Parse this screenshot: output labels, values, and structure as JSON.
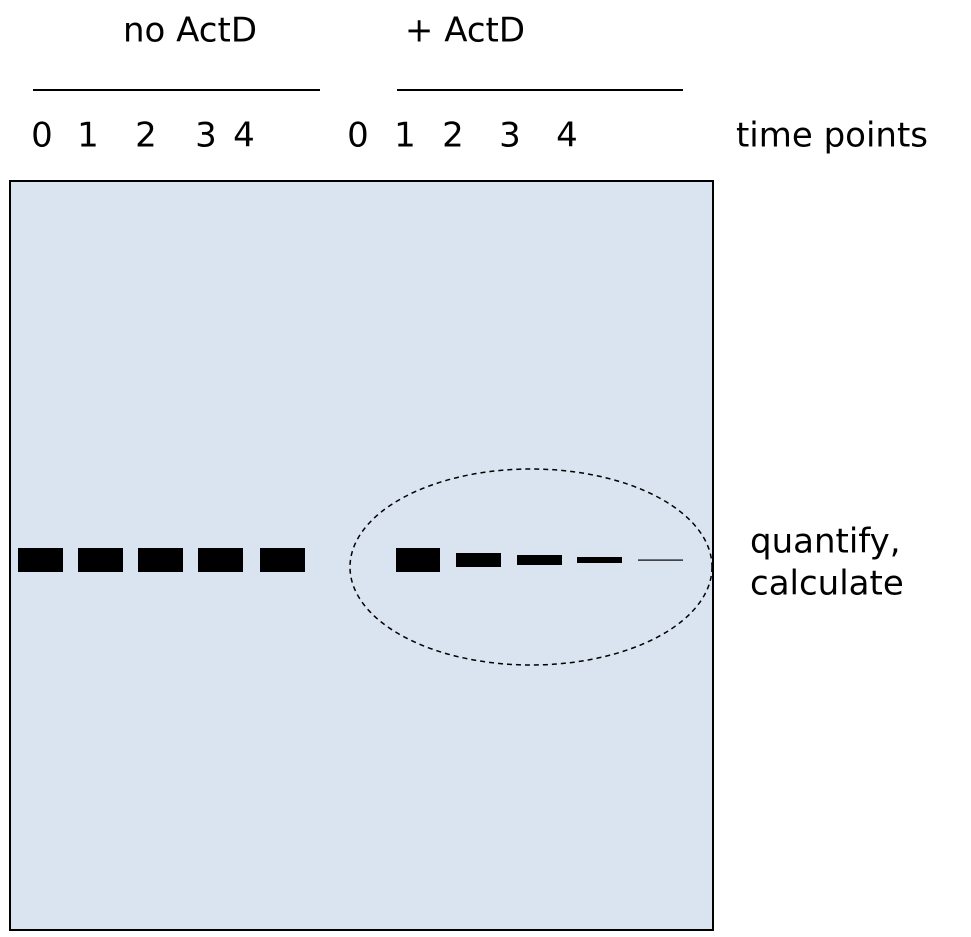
{
  "groups": [
    {
      "label": "no ActD",
      "time_points": [
        "0",
        "1",
        "2",
        "3",
        "4"
      ]
    },
    {
      "label": "+ ActD",
      "time_points": [
        "0",
        "1",
        "2",
        "3",
        "4"
      ]
    }
  ],
  "side_labels": {
    "time_axis": "time points",
    "result": [
      "quantify,",
      "calculate"
    ]
  }
}
